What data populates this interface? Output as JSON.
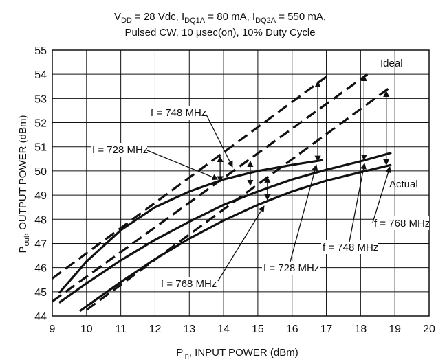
{
  "chart_data": {
    "type": "line",
    "title_line1_parts": [
      "V",
      "DD",
      " = 28 Vdc, I",
      "DQ1A",
      " = 80 mA, I",
      "DQ2A",
      " = 550 mA,"
    ],
    "title_line2": "Pulsed CW, 10 μsec(on), 10% Duty Cycle",
    "xlabel_parts": [
      "P",
      "in",
      ", INPUT POWER (dBm)"
    ],
    "ylabel_parts": [
      "P",
      "out",
      ", OUTPUT POWER (dBm)"
    ],
    "xlim": [
      9,
      20
    ],
    "ylim": [
      44,
      55
    ],
    "xticks": [
      9,
      10,
      11,
      12,
      13,
      14,
      15,
      16,
      17,
      18,
      19,
      20
    ],
    "yticks": [
      44,
      45,
      46,
      47,
      48,
      49,
      50,
      51,
      52,
      53,
      54,
      55
    ],
    "grid": true,
    "series": [
      {
        "style": "dashed",
        "points": [
          [
            9,
            45.55
          ],
          [
            17,
            53.9
          ]
        ]
      },
      {
        "style": "dashed",
        "points": [
          [
            9,
            44.6
          ],
          [
            18.2,
            54.0
          ]
        ]
      },
      {
        "style": "dashed",
        "points": [
          [
            10,
            44.25
          ],
          [
            18.9,
            53.5
          ]
        ]
      },
      {
        "style": "solid",
        "points": [
          [
            9.2,
            44.95
          ],
          [
            10,
            46.25
          ],
          [
            11,
            47.55
          ],
          [
            12,
            48.5
          ],
          [
            13,
            49.15
          ],
          [
            14,
            49.65
          ],
          [
            15,
            50.0
          ],
          [
            16,
            50.25
          ],
          [
            16.9,
            50.45
          ]
        ]
      },
      {
        "style": "solid",
        "points": [
          [
            9.2,
            44.55
          ],
          [
            10,
            45.35
          ],
          [
            11,
            46.3
          ],
          [
            12,
            47.15
          ],
          [
            13,
            47.9
          ],
          [
            14,
            48.6
          ],
          [
            15,
            49.15
          ],
          [
            16,
            49.65
          ],
          [
            17,
            50.05
          ],
          [
            18,
            50.4
          ],
          [
            18.9,
            50.75
          ]
        ]
      },
      {
        "style": "solid",
        "points": [
          [
            9.8,
            44.2
          ],
          [
            11,
            45.4
          ],
          [
            12,
            46.35
          ],
          [
            13,
            47.2
          ],
          [
            14,
            47.95
          ],
          [
            15,
            48.6
          ],
          [
            16,
            49.15
          ],
          [
            17,
            49.6
          ],
          [
            18,
            49.95
          ],
          [
            18.9,
            50.25
          ]
        ]
      }
    ],
    "gap_arrows": [
      {
        "x": 13.9,
        "y1": 49.55,
        "y2": 50.6
      },
      {
        "x": 16.75,
        "y1": 50.4,
        "y2": 53.7
      },
      {
        "x": 14.78,
        "y1": 49.4,
        "y2": 50.4
      },
      {
        "x": 18.1,
        "y1": 50.45,
        "y2": 53.95
      },
      {
        "x": 15.28,
        "y1": 48.8,
        "y2": 49.75
      },
      {
        "x": 18.75,
        "y1": 50.25,
        "y2": 53.3
      }
    ],
    "annotations": [
      {
        "text": "Ideal"
      },
      {
        "text": "Actual"
      },
      {
        "text": "f = 748 MHz"
      },
      {
        "text": "f = 728 MHz"
      },
      {
        "text": "f = 768 MHz"
      },
      {
        "text": "f = 768 MHz"
      },
      {
        "text": "f = 748 MHz"
      },
      {
        "text": "f = 728 MHz"
      }
    ]
  }
}
